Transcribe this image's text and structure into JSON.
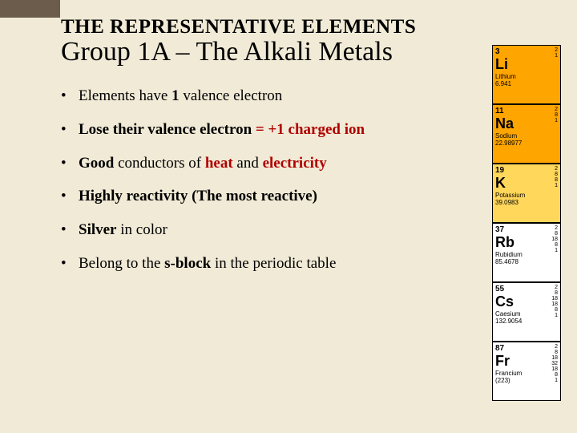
{
  "colors": {
    "background": "#f0ead6",
    "corner": "#6b5c4b",
    "accent_red": "#b00000",
    "text": "#000000",
    "cell_orange": "#ffa500",
    "cell_yellow": "#ffd75a",
    "cell_white": "#ffffff"
  },
  "supertitle": "THE REPRESENTATIVE ELEMENTS",
  "title": "Group 1A – The Alkali Metals",
  "bullets": [
    {
      "parts": [
        {
          "t": "Elements have "
        },
        {
          "t": "1",
          "b": true
        },
        {
          "t": " valence electron"
        }
      ]
    },
    {
      "parts": [
        {
          "t": "Lose",
          "b": true
        },
        {
          "t": " their valence electron ",
          "b": true
        },
        {
          "t": "= +1 charged ion",
          "b": true,
          "red": true
        }
      ]
    },
    {
      "parts": [
        {
          "t": "Good",
          "b": true
        },
        {
          "t": " conductors of "
        },
        {
          "t": "heat",
          "b": true,
          "red": true
        },
        {
          "t": " and "
        },
        {
          "t": "electricity",
          "b": true,
          "red": true
        }
      ]
    },
    {
      "parts": [
        {
          "t": "Highly reactivity (The most reactive)",
          "b": true
        }
      ]
    },
    {
      "parts": [
        {
          "t": "Silver",
          "b": true
        },
        {
          "t": " in color"
        }
      ]
    },
    {
      "parts": [
        {
          "t": "Belong to the "
        },
        {
          "t": "s-block",
          "b": true
        },
        {
          "t": " in the periodic table"
        }
      ]
    }
  ],
  "pt_strip": [
    {
      "z": "3",
      "sym": "Li",
      "name": "Lithium",
      "mass": "6.941",
      "conf": "2\n1",
      "bg": "c-orange"
    },
    {
      "z": "11",
      "sym": "Na",
      "name": "Sodium",
      "mass": "22.98977",
      "conf": "2\n8\n1",
      "bg": "c-orange"
    },
    {
      "z": "19",
      "sym": "K",
      "name": "Potassium",
      "mass": "39.0983",
      "conf": "2\n8\n8\n1",
      "bg": "c-yellow"
    },
    {
      "z": "37",
      "sym": "Rb",
      "name": "Rubidium",
      "mass": "85.4678",
      "conf": "2\n8\n18\n8\n1",
      "bg": ""
    },
    {
      "z": "55",
      "sym": "Cs",
      "name": "Caesium",
      "mass": "132.9054",
      "conf": "2\n8\n18\n18\n8\n1",
      "bg": ""
    },
    {
      "z": "87",
      "sym": "Fr",
      "name": "Francium",
      "mass": "(223)",
      "conf": "2\n8\n18\n32\n18\n8\n1",
      "bg": ""
    }
  ]
}
